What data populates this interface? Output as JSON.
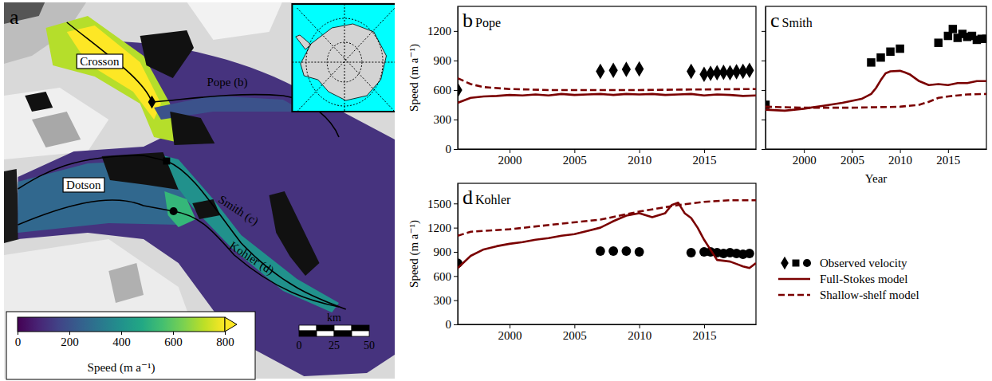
{
  "chart_data": [
    {
      "type": "map",
      "panel_label": "a",
      "labels": [
        "Crosson",
        "Dotson",
        "Pope (b)",
        "Smith (c)",
        "Kohler (d)"
      ],
      "colorbar": {
        "label": "Speed (m a⁻¹)",
        "range": [
          0,
          800
        ],
        "ticks": [
          0,
          200,
          400,
          600,
          800
        ]
      },
      "scale_bar": {
        "label": "km",
        "ticks": [
          0,
          25,
          50
        ]
      }
    },
    {
      "type": "line",
      "panel_label": "b",
      "title": "Pope",
      "y_label": "Speed (m a⁻¹)",
      "xlim": [
        1996,
        2019
      ],
      "xticks": [
        2000,
        2005,
        2010,
        2015
      ],
      "ylim": [
        0,
        1450
      ],
      "yticks": [
        0,
        300,
        600,
        900,
        1200
      ],
      "series": [
        {
          "name": "Observed velocity",
          "type": "scatter",
          "marker": "diamond",
          "color": "#000000",
          "x": [
            1996,
            2007,
            2008,
            2009,
            2010,
            2014,
            2015,
            2015.5,
            2016,
            2016.5,
            2017,
            2017.5,
            2018,
            2018.5
          ],
          "values": [
            600,
            790,
            800,
            810,
            815,
            790,
            760,
            770,
            775,
            780,
            775,
            785,
            790,
            800
          ]
        },
        {
          "name": "Full-Stokes model",
          "type": "line",
          "line_style": "solid",
          "color": "#7a0000",
          "x": [
            1996,
            1997,
            1998,
            1999,
            2000,
            2001,
            2002,
            2003,
            2004,
            2005,
            2006,
            2007,
            2008,
            2009,
            2010,
            2011,
            2012,
            2013,
            2014,
            2015,
            2016,
            2017,
            2018,
            2019
          ],
          "values": [
            470,
            520,
            535,
            540,
            550,
            545,
            555,
            545,
            560,
            550,
            555,
            560,
            550,
            560,
            555,
            560,
            550,
            555,
            560,
            545,
            555,
            550,
            540,
            545
          ]
        },
        {
          "name": "Shallow-shelf model",
          "type": "line",
          "line_style": "dashed",
          "color": "#7a0000",
          "x": [
            1996,
            1997,
            1998,
            2000,
            2003,
            2006,
            2010,
            2014,
            2019
          ],
          "values": [
            720,
            660,
            630,
            610,
            600,
            600,
            600,
            605,
            610
          ]
        }
      ]
    },
    {
      "type": "line",
      "panel_label": "c",
      "title": "Smith",
      "x_label": "Year",
      "tick_labels": "x",
      "xlim": [
        1996,
        2019
      ],
      "xticks": [
        2000,
        2005,
        2010,
        2015
      ],
      "ylim": [
        0,
        1450
      ],
      "yticks": [
        0,
        300,
        600,
        900,
        1200
      ],
      "series": [
        {
          "name": "Observed velocity",
          "type": "scatter",
          "marker": "square",
          "color": "#000000",
          "x": [
            1996,
            2007,
            2008,
            2009,
            2010,
            2014,
            2015,
            2015.5,
            2016,
            2016.5,
            2017,
            2017.5,
            2018,
            2018.5,
            2019
          ],
          "values": [
            450,
            880,
            930,
            990,
            1020,
            1080,
            1150,
            1220,
            1130,
            1170,
            1140,
            1150,
            1110,
            1120,
            1120
          ]
        },
        {
          "name": "Full-Stokes model",
          "type": "line",
          "line_style": "solid",
          "color": "#7a0000",
          "x": [
            1996,
            1998,
            2000,
            2002,
            2004,
            2006,
            2007,
            2007.5,
            2008,
            2008.5,
            2009,
            2010,
            2010.5,
            2011,
            2012,
            2013,
            2014,
            2015,
            2016,
            2017,
            2018,
            2019
          ],
          "values": [
            400,
            390,
            410,
            440,
            470,
            510,
            560,
            620,
            700,
            770,
            790,
            795,
            780,
            760,
            690,
            650,
            660,
            650,
            670,
            670,
            690,
            690
          ]
        },
        {
          "name": "Shallow-shelf model",
          "type": "line",
          "line_style": "dashed",
          "color": "#7a0000",
          "x": [
            1996,
            2000,
            2005,
            2010,
            2012,
            2013,
            2014,
            2015,
            2016,
            2017,
            2019
          ],
          "values": [
            430,
            420,
            420,
            430,
            450,
            480,
            520,
            535,
            545,
            555,
            560
          ]
        }
      ]
    },
    {
      "type": "line",
      "panel_label": "d",
      "title": "Kohler",
      "y_label": "Speed (m a⁻¹)",
      "legend": "right",
      "xlim": [
        1996,
        2019
      ],
      "xticks": [
        2000,
        2005,
        2010,
        2015
      ],
      "ylim": [
        0,
        1750
      ],
      "yticks": [
        0,
        300,
        600,
        900,
        1200,
        1500
      ],
      "series": [
        {
          "name": "Observed velocity",
          "type": "scatter",
          "marker": "circle",
          "color": "#000000",
          "x": [
            1996,
            2007,
            2008,
            2009,
            2010,
            2014,
            2015,
            2015.5,
            2016,
            2016.5,
            2017,
            2017.5,
            2018,
            2018.5
          ],
          "values": [
            760,
            910,
            910,
            910,
            900,
            890,
            900,
            900,
            890,
            880,
            890,
            880,
            870,
            880
          ]
        },
        {
          "name": "Full-Stokes model",
          "type": "line",
          "line_style": "solid",
          "color": "#7a0000",
          "x": [
            1996,
            1997,
            1998,
            1999,
            2000,
            2001,
            2002,
            2003,
            2004,
            2005,
            2006,
            2007,
            2008,
            2009,
            2010,
            2011,
            2012,
            2012.5,
            2013,
            2013.5,
            2014,
            2014.5,
            2015,
            2016,
            2017,
            2017.5,
            2018,
            2018.5,
            2019
          ],
          "values": [
            700,
            850,
            930,
            970,
            1000,
            1020,
            1050,
            1070,
            1100,
            1120,
            1160,
            1200,
            1280,
            1350,
            1380,
            1330,
            1380,
            1480,
            1510,
            1380,
            1320,
            1200,
            1050,
            800,
            780,
            750,
            720,
            700,
            760
          ]
        },
        {
          "name": "Shallow-shelf model",
          "type": "line",
          "line_style": "dashed",
          "color": "#7a0000",
          "x": [
            1996,
            1997,
            2000,
            2004,
            2007,
            2010,
            2013,
            2015,
            2017,
            2019
          ],
          "values": [
            1100,
            1150,
            1180,
            1250,
            1300,
            1400,
            1480,
            1520,
            1540,
            1540
          ]
        }
      ]
    }
  ]
}
